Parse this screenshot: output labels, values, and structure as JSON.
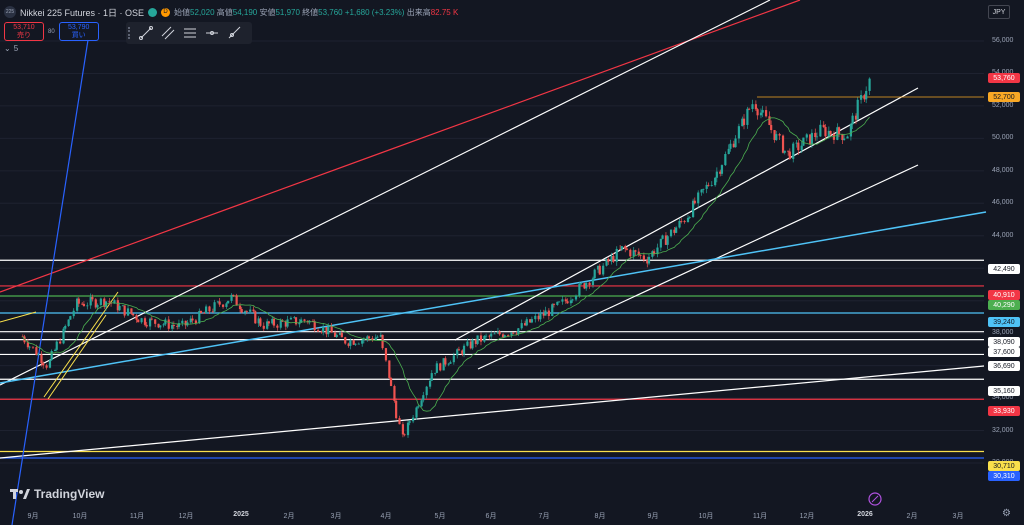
{
  "header": {
    "symbol_badge": "225",
    "title": "Nikkei 225 Futures · 1日 · OSE",
    "flag_d": "D",
    "open_label": "始値",
    "open": "52,020",
    "high_label": "高値",
    "high": "54,190",
    "low_label": "安値",
    "low": "51,970",
    "close_label": "終値",
    "close": "53,760",
    "change": "+1,680 (+3.23%)",
    "volume_label": "出来高",
    "volume": "82.75 K"
  },
  "trade": {
    "sell_price": "53,710",
    "sell_label": "売り",
    "spread": "80",
    "buy_price": "53,790",
    "buy_label": "買い"
  },
  "indicators": {
    "count": "5"
  },
  "currency": "JPY",
  "logo_text": "TradingView",
  "y_ticks": [
    "56,000",
    "54,000",
    "52,000",
    "50,000",
    "48,000",
    "46,000",
    "44,000",
    "42,000",
    "40,000",
    "38,000",
    "36,000",
    "34,000",
    "32,000",
    "30,000"
  ],
  "x_ticks": [
    "9月",
    "10月",
    "11月",
    "12月",
    "2025",
    "2月",
    "3月",
    "4月",
    "5月",
    "6月",
    "7月",
    "8月",
    "9月",
    "10月",
    "11月",
    "12月",
    "2026",
    "2月",
    "3月"
  ],
  "price_labels": [
    {
      "text": "53,760",
      "bg": "#f23645",
      "fg": "#ffffff"
    },
    {
      "text": "52,700",
      "bg": "#f9a825",
      "fg": "#131722"
    },
    {
      "text": "42,490",
      "bg": "#ffffff",
      "fg": "#131722"
    },
    {
      "text": "40,910",
      "bg": "#f23645",
      "fg": "#ffffff"
    },
    {
      "text": "40,290",
      "bg": "#4caf50",
      "fg": "#ffffff"
    },
    {
      "text": "39,240",
      "bg": "#4fc3f7",
      "fg": "#131722"
    },
    {
      "text": "38,090",
      "bg": "#ffffff",
      "fg": "#131722"
    },
    {
      "text": "37,600",
      "bg": "#ffffff",
      "fg": "#131722"
    },
    {
      "text": "36,690",
      "bg": "#ffffff",
      "fg": "#131722"
    },
    {
      "text": "35,160",
      "bg": "#ffffff",
      "fg": "#131722"
    },
    {
      "text": "33,930",
      "bg": "#f23645",
      "fg": "#ffffff"
    },
    {
      "text": "30,710",
      "bg": "#f9e04b",
      "fg": "#131722"
    },
    {
      "text": "30,310",
      "bg": "#2962ff",
      "fg": "#ffffff"
    }
  ],
  "colors": {
    "up": "#26a69a",
    "down": "#ef5350",
    "bg": "#131722",
    "ma": "#4caf50"
  },
  "chart_data": {
    "type": "candlestick",
    "levels": [
      {
        "value": 42490,
        "color": "#ffffff"
      },
      {
        "value": 40910,
        "color": "#f23645"
      },
      {
        "value": 40290,
        "color": "#4caf50"
      },
      {
        "value": 39240,
        "color": "#4fc3f7"
      },
      {
        "value": 38090,
        "color": "#ffffff"
      },
      {
        "value": 37600,
        "color": "#ffffff"
      },
      {
        "value": 36690,
        "color": "#ffffff"
      },
      {
        "value": 35160,
        "color": "#ffffff"
      },
      {
        "value": 33930,
        "color": "#f23645"
      },
      {
        "value": 30710,
        "color": "#f9e04b"
      },
      {
        "value": 30310,
        "color": "#2962ff"
      }
    ],
    "price_path": [
      [
        "2024-08-26",
        37800
      ],
      [
        "2024-09-10",
        36000
      ],
      [
        "2024-09-27",
        39800
      ],
      [
        "2024-10-15",
        40000
      ],
      [
        "2024-11-05",
        38800
      ],
      [
        "2024-11-28",
        38400
      ],
      [
        "2024-12-27",
        40200
      ],
      [
        "2025-01-15",
        38500
      ],
      [
        "2025-02-10",
        38800
      ],
      [
        "2025-03-05",
        37500
      ],
      [
        "2025-03-25",
        37800
      ],
      [
        "2025-04-07",
        31500
      ],
      [
        "2025-04-25",
        35700
      ],
      [
        "2025-05-20",
        37500
      ],
      [
        "2025-06-15",
        38300
      ],
      [
        "2025-07-10",
        39800
      ],
      [
        "2025-07-25",
        41200
      ],
      [
        "2025-08-15",
        43200
      ],
      [
        "2025-08-29",
        42600
      ],
      [
        "2025-09-20",
        45000
      ],
      [
        "2025-10-10",
        48000
      ],
      [
        "2025-10-31",
        52300
      ],
      [
        "2025-11-20",
        49000
      ],
      [
        "2025-12-10",
        50500
      ],
      [
        "2025-12-25",
        50200
      ],
      [
        "2026-01-08",
        53760
      ]
    ]
  }
}
